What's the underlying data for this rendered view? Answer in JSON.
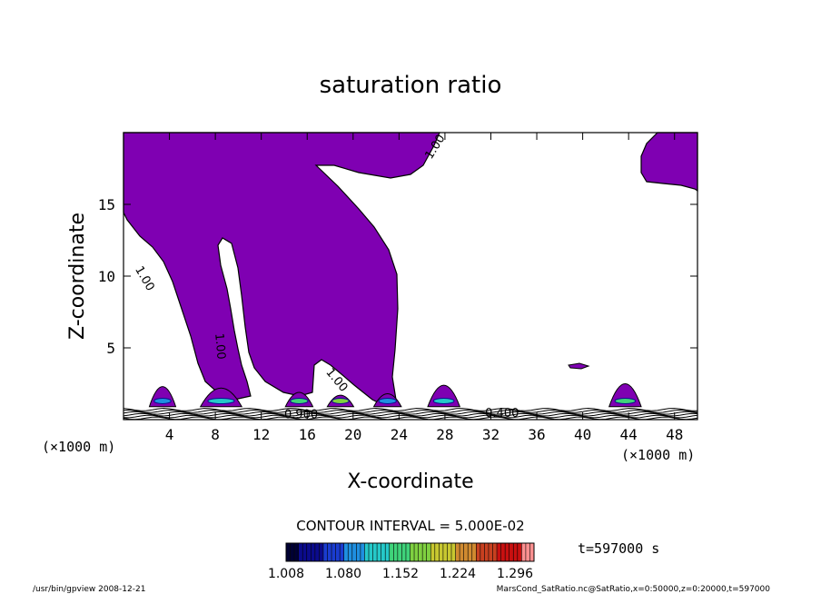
{
  "chart_data": {
    "type": "heatmap",
    "title": "saturation ratio",
    "xlabel": "X-coordinate",
    "ylabel": "Z-coordinate",
    "x_unit": "(×1000 m)",
    "y_unit": "(×1000 m)",
    "xlim": [
      0,
      50
    ],
    "ylim": [
      0,
      20
    ],
    "xticks": [
      4,
      8,
      12,
      16,
      20,
      24,
      28,
      32,
      36,
      40,
      44,
      48
    ],
    "yticks": [
      5,
      10,
      15
    ],
    "contour_interval_text": "CONTOUR INTERVAL = 5.000E-02",
    "time_text": "t=597000 s",
    "colorbar": {
      "range": [
        1.008,
        1.32
      ],
      "tick_labels": [
        "1.008",
        "1.080",
        "1.152",
        "1.224",
        "1.296"
      ],
      "colors": [
        "#000033",
        "#0b0b8c",
        "#1a3cd0",
        "#1f8fe0",
        "#25c9c9",
        "#3fd37a",
        "#7fd040",
        "#c8c830",
        "#d08a30",
        "#c84020",
        "#c81010",
        "#ff9090"
      ]
    },
    "fill_color": "#7f00b2",
    "contour_labels": [
      {
        "text": "1.00",
        "x": 26.8,
        "y": 18.1,
        "rotate": -58
      },
      {
        "text": "1.00",
        "x": 1.0,
        "y": 10.5,
        "rotate": 60
      },
      {
        "text": "1.00",
        "x": 8.0,
        "y": 6.0,
        "rotate": 85
      },
      {
        "text": "1.00",
        "x": 17.6,
        "y": 3.3,
        "rotate": 50
      },
      {
        "text": "0.900",
        "x": 14.0,
        "y": 0.1,
        "rotate": 0
      },
      {
        "text": "0.400",
        "x": 31.5,
        "y": 0.2,
        "rotate": 0
      }
    ]
  },
  "footer": {
    "left": "/usr/bin/gpview   2008-12-21",
    "right": "MarsCond_SatRatio.nc@SatRatio,x=0:50000,z=0:20000,t=597000"
  }
}
